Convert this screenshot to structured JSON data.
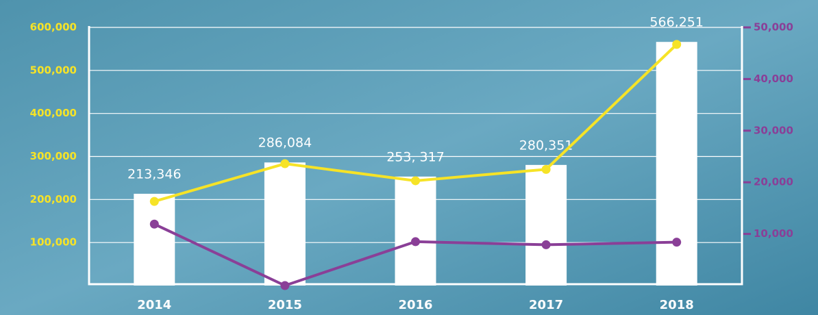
{
  "chart_data": {
    "type": "bar-line",
    "categories": [
      "2014",
      "2015",
      "2016",
      "2017",
      "2018"
    ],
    "series": [
      {
        "type": "bar",
        "color": "#ffffff",
        "values": [
          213346,
          286084,
          253317,
          280351,
          566251
        ],
        "value_labels": [
          "213,346",
          "286,084",
          "253, 317",
          "280,351",
          "566,251"
        ]
      },
      {
        "type": "line",
        "axis": "y2",
        "color": "#f6e327",
        "values": [
          16300,
          23600,
          20300,
          22500,
          46700
        ]
      },
      {
        "type": "line",
        "axis": "y2",
        "color": "#8a3f97",
        "values": [
          11900,
          0,
          8500,
          7900,
          8400
        ]
      }
    ],
    "ylim": [
      0,
      600000
    ],
    "yticks": [
      {
        "value": 100000,
        "label": "100,000"
      },
      {
        "value": 200000,
        "label": "200,000"
      },
      {
        "value": 300000,
        "label": "300,000"
      },
      {
        "value": 400000,
        "label": "400,000"
      },
      {
        "value": 500000,
        "label": "500,000"
      },
      {
        "value": 600000,
        "label": "600,000"
      }
    ],
    "y2lim": [
      0,
      50000
    ],
    "y2ticks": [
      {
        "value": 10000,
        "label": "10,000"
      },
      {
        "value": 20000,
        "label": "20,000"
      },
      {
        "value": 30000,
        "label": "30,000"
      },
      {
        "value": 40000,
        "label": "40,000"
      },
      {
        "value": 50000,
        "label": "50,000"
      }
    ],
    "ytick_color": "#f6e327",
    "y2tick_color": "#8a3f97",
    "grid": true
  }
}
